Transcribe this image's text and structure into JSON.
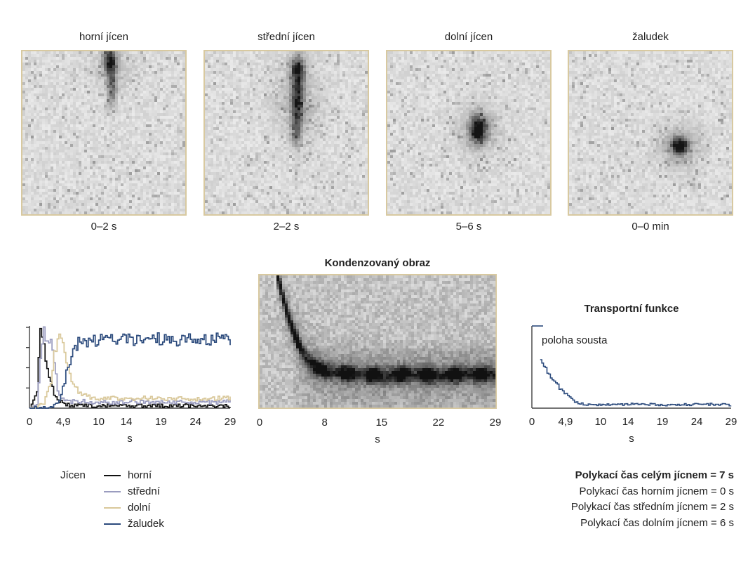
{
  "colors": {
    "horni": "#111111",
    "stredni": "#9a9cbf",
    "dolni": "#d9c89a",
    "zaludek": "#2b4a7c",
    "frame": "#d8c9a0"
  },
  "panels": [
    {
      "title": "horní jícen",
      "time": "0–2 s"
    },
    {
      "title": "střední jícen",
      "time": "2–2 s"
    },
    {
      "title": "dolní jícen",
      "time": "5–6 s"
    },
    {
      "title": "žaludek",
      "time": "0–0 min"
    }
  ],
  "condensed": {
    "title": "Kondenzovaný obraz"
  },
  "transport": {
    "title": "Transportní funkce",
    "annotation": "poloha sousta"
  },
  "chart_data": [
    {
      "type": "line",
      "xlabel": "s",
      "xticks": [
        "0",
        "4,9",
        "10",
        "14",
        "19",
        "24",
        "29"
      ],
      "xtick_values": [
        0,
        4.9,
        10,
        14,
        19,
        24,
        29
      ],
      "xlim": [
        0,
        29
      ],
      "ylim": [
        0,
        1
      ],
      "series": [
        {
          "name": "horní",
          "x": [
            0,
            1,
            1.5,
            2,
            2.5,
            3,
            3.5,
            4,
            5,
            6,
            8,
            10,
            15,
            20,
            25,
            29
          ],
          "values": [
            0,
            0.2,
            1.0,
            0.75,
            0.45,
            0.3,
            0.18,
            0.1,
            0.05,
            0.03,
            0.04,
            0.03,
            0.03,
            0.03,
            0.03,
            0.03
          ]
        },
        {
          "name": "střední",
          "x": [
            0,
            1,
            1.5,
            2,
            2.5,
            3,
            3.5,
            4,
            4.5,
            5,
            6,
            8,
            10,
            15,
            20,
            25,
            29
          ],
          "values": [
            0,
            0.05,
            0.6,
            0.92,
            0.85,
            0.88,
            0.6,
            0.25,
            0.12,
            0.08,
            0.08,
            0.08,
            0.07,
            0.08,
            0.08,
            0.07,
            0.08
          ]
        },
        {
          "name": "dolní",
          "x": [
            0,
            2,
            3,
            3.5,
            4,
            4.5,
            5,
            5.5,
            6,
            7,
            8,
            10,
            15,
            20,
            25,
            29
          ],
          "values": [
            0,
            0.05,
            0.3,
            0.65,
            0.85,
            0.95,
            0.75,
            0.5,
            0.3,
            0.2,
            0.15,
            0.12,
            0.12,
            0.12,
            0.12,
            0.13
          ]
        },
        {
          "name": "žaludek",
          "x": [
            0,
            3,
            4,
            5,
            5.5,
            6,
            7,
            8,
            10,
            12,
            15,
            18,
            20,
            22,
            25,
            28,
            29
          ],
          "values": [
            0,
            0,
            0.05,
            0.3,
            0.55,
            0.65,
            0.8,
            0.82,
            0.85,
            0.84,
            0.85,
            0.86,
            0.84,
            0.85,
            0.86,
            0.85,
            0.84
          ]
        }
      ]
    },
    {
      "type": "heatmap",
      "title": "Kondenzovaný obraz",
      "xlabel": "s",
      "xticks": [
        "0",
        "8",
        "15",
        "22",
        "29"
      ],
      "xtick_values": [
        0,
        8,
        15,
        22,
        29
      ],
      "xlim": [
        0,
        29
      ],
      "trace_x": [
        2.2,
        3,
        4,
        5,
        6,
        7,
        8,
        10,
        12,
        15,
        18,
        22,
        25,
        29
      ],
      "trace_y": [
        1.0,
        0.8,
        0.6,
        0.45,
        0.35,
        0.3,
        0.28,
        0.26,
        0.25,
        0.24,
        0.25,
        0.24,
        0.25,
        0.25
      ]
    },
    {
      "type": "line",
      "title": "Transportní funkce",
      "xlabel": "s",
      "xticks": [
        "0",
        "4,9",
        "10",
        "14",
        "19",
        "24",
        "29"
      ],
      "xtick_values": [
        0,
        4.9,
        10,
        14,
        19,
        24,
        29
      ],
      "xlim": [
        0,
        29
      ],
      "ylim": [
        0,
        1
      ],
      "series": [
        {
          "x": [
            1.2,
            1.8,
            2.5,
            3,
            3.5,
            4,
            4.5,
            5,
            5.5,
            6,
            7,
            8,
            10,
            15,
            20,
            25,
            29
          ],
          "values": [
            0.6,
            0.5,
            0.4,
            0.35,
            0.3,
            0.25,
            0.2,
            0.16,
            0.12,
            0.09,
            0.06,
            0.04,
            0.04,
            0.05,
            0.04,
            0.05,
            0.04
          ]
        }
      ]
    }
  ],
  "legend": {
    "group_label": "Jícen",
    "items": [
      {
        "label": "horní",
        "color": "#111111"
      },
      {
        "label": "střední",
        "color": "#9a9cbf"
      },
      {
        "label": "dolní",
        "color": "#d9c89a"
      },
      {
        "label": "žaludek",
        "color": "#2b4a7c"
      }
    ]
  },
  "stats": {
    "total": "Polykací čas celým jícnem = 7 s",
    "upper": "Polykací čas horním jícnem = 0 s",
    "middle": "Polykací čas středním jícnem = 2 s",
    "lower": "Polykací čas dolním jícnem = 6 s"
  }
}
